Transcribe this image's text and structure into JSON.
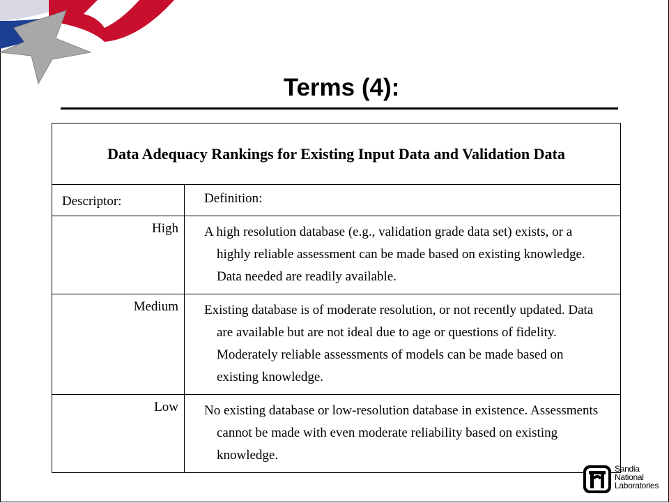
{
  "title": "Terms (4):",
  "table": {
    "caption": "Data Adequacy Rankings for Existing Input Data and Validation Data",
    "header": [
      "Descriptor:",
      "Definition:"
    ],
    "rows": [
      [
        "High",
        "A high resolution database (e.g., validation grade data set) exists, or a highly reliable assessment can be made based on existing knowledge. Data needed are readily available."
      ],
      [
        "Medium",
        "Existing database is of moderate resolution, or not recently updated. Data are available but are not ideal due to age or questions of fidelity. Moderately reliable assessments of models can be made based on existing knowledge."
      ],
      [
        "Low",
        "No existing database or low-resolution database in existence. Assessments cannot be made with even moderate reliability based on existing knowledge."
      ]
    ]
  },
  "logo": {
    "lines": [
      "Sandia",
      "National",
      "Laboratories"
    ]
  }
}
